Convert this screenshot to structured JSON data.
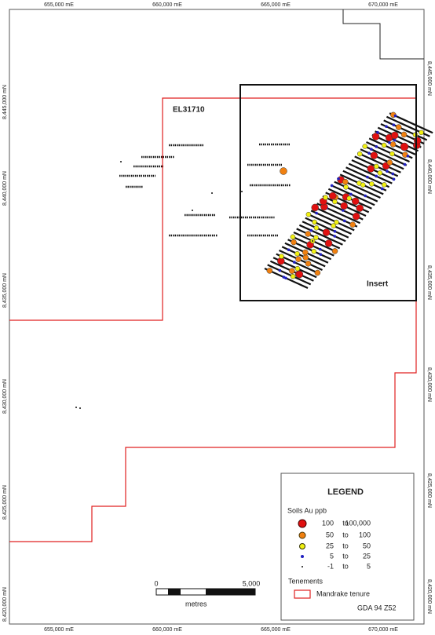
{
  "grid": {
    "top_labels": [
      "655,000 mE",
      "660,000 mE",
      "665,000 mE",
      "670,000 mE"
    ],
    "bottom_labels": [
      "655,000 mE",
      "660,000 mE",
      "665,000 mE",
      "670,000 mE"
    ],
    "left_labels": [
      "8,445,000 mN",
      "8,440,000 mN",
      "8,435,000 mN",
      "8,430,000 mN",
      "8,425,000 mN",
      "8,420,000 mN"
    ],
    "right_labels": [
      "8,445,000 mN",
      "8,440,000 mN",
      "8,435,000 mN",
      "8,430,000 mN",
      "8,425,000 mN",
      "8,420,000 mN"
    ]
  },
  "map": {
    "tenement_label": "EL31710",
    "insert_label": "Insert"
  },
  "scale_bar": {
    "start": "0",
    "end": "5,000",
    "unit": "metres"
  },
  "legend": {
    "title": "LEGEND",
    "soils_title": "Soils Au ppb",
    "rows": [
      {
        "from": "100",
        "to": "to",
        "upto": "100,000"
      },
      {
        "from": "50",
        "to": "to",
        "upto": "100"
      },
      {
        "from": "25",
        "to": "to",
        "upto": "50"
      },
      {
        "from": "5",
        "to": "to",
        "upto": "25"
      },
      {
        "from": "-1",
        "to": "to",
        "upto": "5"
      }
    ],
    "tenements_title": "Tenements",
    "tenement_entry": "Mandrake tenure"
  },
  "projection": "GDA 94 Z52"
}
